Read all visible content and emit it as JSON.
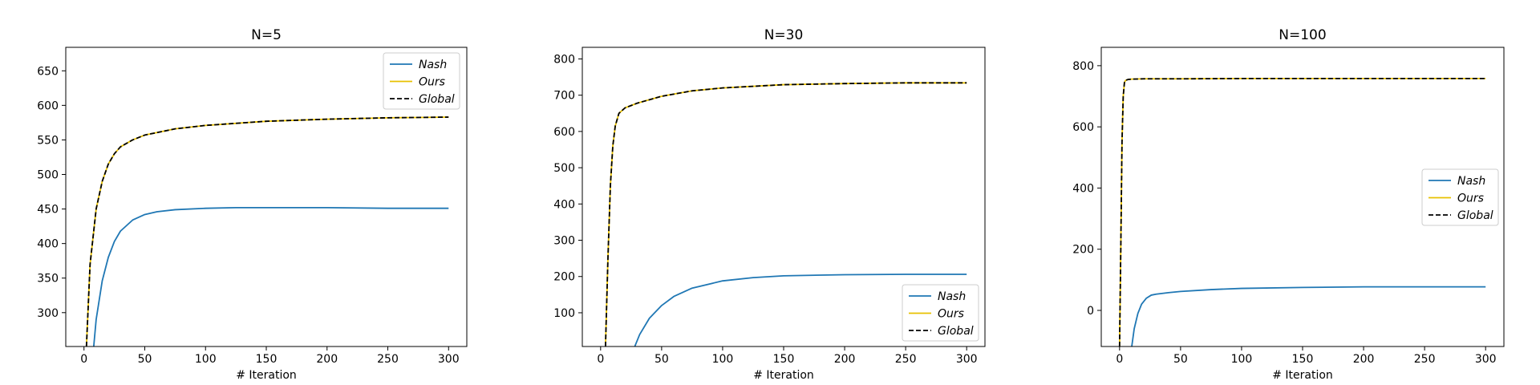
{
  "chart_data": [
    {
      "type": "line",
      "title": "N=5",
      "xlabel": "# Iteration",
      "ylabel": "",
      "xlim": [
        -15,
        315
      ],
      "ylim": [
        251,
        684
      ],
      "xticks": [
        0,
        50,
        100,
        150,
        200,
        250,
        300
      ],
      "yticks": [
        300,
        350,
        400,
        450,
        500,
        550,
        600,
        650
      ],
      "legend_position": "upper right",
      "series": [
        {
          "name": "Nash",
          "color": "#1f77b4",
          "dash": "solid",
          "x": [
            8,
            10,
            15,
            20,
            25,
            30,
            40,
            50,
            60,
            75,
            100,
            125,
            150,
            200,
            250,
            300
          ],
          "y": [
            251,
            290,
            346,
            380,
            403,
            418,
            434,
            442,
            446,
            449,
            451,
            452,
            452,
            452,
            451,
            451
          ]
        },
        {
          "name": "Ours",
          "color": "#e8c000",
          "dash": "solid",
          "x": [
            2,
            5,
            10,
            15,
            20,
            25,
            30,
            40,
            50,
            75,
            100,
            150,
            200,
            250,
            300
          ],
          "y": [
            251,
            370,
            450,
            490,
            515,
            530,
            540,
            550,
            557,
            566,
            571,
            577,
            580,
            582,
            583
          ]
        },
        {
          "name": "Global",
          "color": "#000000",
          "dash": "dashed",
          "x": [
            2,
            5,
            10,
            15,
            20,
            25,
            30,
            40,
            50,
            75,
            100,
            150,
            200,
            250,
            300
          ],
          "y": [
            251,
            370,
            450,
            490,
            515,
            530,
            540,
            550,
            557,
            566,
            571,
            577,
            580,
            582,
            583
          ]
        }
      ]
    },
    {
      "type": "line",
      "title": "N=30",
      "xlabel": "# Iteration",
      "ylabel": "",
      "xlim": [
        -15,
        315
      ],
      "ylim": [
        7,
        832
      ],
      "xticks": [
        0,
        50,
        100,
        150,
        200,
        250,
        300
      ],
      "yticks": [
        100,
        200,
        300,
        400,
        500,
        600,
        700,
        800
      ],
      "legend_position": "lower right",
      "series": [
        {
          "name": "Nash",
          "color": "#1f77b4",
          "dash": "solid",
          "x": [
            28,
            32,
            40,
            50,
            60,
            75,
            100,
            125,
            150,
            200,
            250,
            300
          ],
          "y": [
            7,
            40,
            85,
            120,
            145,
            168,
            188,
            197,
            202,
            205,
            206,
            206
          ]
        },
        {
          "name": "Ours",
          "color": "#e8c000",
          "dash": "solid",
          "x": [
            4,
            6,
            8,
            10,
            12,
            15,
            20,
            30,
            50,
            75,
            100,
            150,
            200,
            250,
            300
          ],
          "y": [
            7,
            250,
            450,
            560,
            615,
            650,
            665,
            678,
            697,
            712,
            720,
            729,
            732,
            734,
            734
          ]
        },
        {
          "name": "Global",
          "color": "#000000",
          "dash": "dashed",
          "x": [
            4,
            6,
            8,
            10,
            12,
            15,
            20,
            30,
            50,
            75,
            100,
            150,
            200,
            250,
            300
          ],
          "y": [
            7,
            250,
            450,
            560,
            615,
            650,
            665,
            678,
            697,
            712,
            720,
            729,
            732,
            734,
            734
          ]
        }
      ]
    },
    {
      "type": "line",
      "title": "N=100",
      "xlabel": "# Iteration",
      "ylabel": "",
      "xlim": [
        -15,
        315
      ],
      "ylim": [
        -118,
        860
      ],
      "xticks": [
        0,
        50,
        100,
        150,
        200,
        250,
        300
      ],
      "yticks": [
        0,
        200,
        400,
        600,
        800
      ],
      "legend_position": "center right",
      "series": [
        {
          "name": "Nash",
          "color": "#1f77b4",
          "dash": "solid",
          "x": [
            10,
            12,
            15,
            18,
            22,
            26,
            30,
            40,
            50,
            75,
            100,
            150,
            200,
            250,
            300
          ],
          "y": [
            -118,
            -60,
            -10,
            20,
            40,
            50,
            53,
            58,
            62,
            68,
            72,
            75,
            77,
            77,
            77
          ]
        },
        {
          "name": "Ours",
          "color": "#e8c000",
          "dash": "solid",
          "x": [
            0,
            1,
            2,
            3,
            4,
            5,
            7,
            10,
            20,
            50,
            100,
            150,
            200,
            250,
            300
          ],
          "y": [
            -118,
            200,
            550,
            700,
            745,
            752,
            755,
            756,
            757,
            757,
            758,
            758,
            758,
            758,
            758
          ]
        },
        {
          "name": "Global",
          "color": "#000000",
          "dash": "dashed",
          "x": [
            0,
            1,
            2,
            3,
            4,
            5,
            7,
            10,
            20,
            50,
            100,
            150,
            200,
            250,
            300
          ],
          "y": [
            -118,
            200,
            550,
            700,
            745,
            752,
            755,
            756,
            757,
            757,
            758,
            758,
            758,
            758,
            758
          ]
        }
      ]
    }
  ]
}
